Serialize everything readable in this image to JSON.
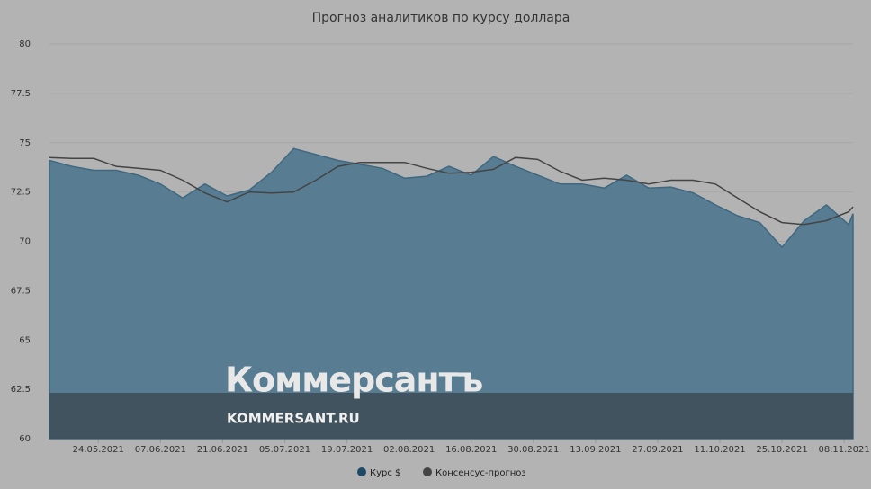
{
  "chart_data": {
    "type": "area-line",
    "title": "Прогноз аналитиков по курсу доллара",
    "x": [
      "13.05.2021",
      "18.05.2021",
      "23.05.2021",
      "28.05.2021",
      "02.06.2021",
      "07.06.2021",
      "12.06.2021",
      "17.06.2021",
      "22.06.2021",
      "27.06.2021",
      "02.07.2021",
      "07.07.2021",
      "12.07.2021",
      "17.07.2021",
      "22.07.2021",
      "27.07.2021",
      "01.08.2021",
      "06.08.2021",
      "11.08.2021",
      "16.08.2021",
      "21.08.2021",
      "26.08.2021",
      "31.08.2021",
      "05.09.2021",
      "10.09.2021",
      "15.09.2021",
      "20.09.2021",
      "25.09.2021",
      "30.09.2021",
      "05.10.2021",
      "10.10.2021",
      "15.10.2021",
      "20.10.2021",
      "25.10.2021",
      "30.10.2021",
      "04.11.2021",
      "09.11.2021",
      "10.11.2021"
    ],
    "series": [
      {
        "name": "Курс $",
        "color": "#587d92",
        "kind": "area",
        "values": [
          74.1,
          73.8,
          73.6,
          73.6,
          73.35,
          72.9,
          72.2,
          72.9,
          72.3,
          72.6,
          73.5,
          74.7,
          74.4,
          74.1,
          73.9,
          73.7,
          73.2,
          73.3,
          73.8,
          73.35,
          74.3,
          73.8,
          73.35,
          72.9,
          72.9,
          72.7,
          73.35,
          72.7,
          72.75,
          72.45,
          71.85,
          71.3,
          70.95,
          69.7,
          71.05,
          71.85,
          70.85,
          71.4
        ]
      },
      {
        "name": "Консенсус-прогноз",
        "color": "#444444",
        "kind": "line",
        "values": [
          74.25,
          74.2,
          74.2,
          73.8,
          73.7,
          73.6,
          73.1,
          72.45,
          72.0,
          72.5,
          72.45,
          72.5,
          73.1,
          73.8,
          74.0,
          74.0,
          74.0,
          73.7,
          73.45,
          73.5,
          73.65,
          74.25,
          74.15,
          73.55,
          73.1,
          73.2,
          73.1,
          72.9,
          73.1,
          73.1,
          72.9,
          72.2,
          71.5,
          70.95,
          70.85,
          71.05,
          71.5,
          71.75
        ]
      }
    ],
    "xlim": [
      "13.05.2021",
      "10.11.2021"
    ],
    "xticks": [
      "24.05.2021",
      "07.06.2021",
      "21.06.2021",
      "05.07.2021",
      "19.07.2021",
      "02.08.2021",
      "16.08.2021",
      "30.08.2021",
      "13.09.2021",
      "27.09.2021",
      "11.10.2021",
      "25.10.2021",
      "08.11.2021"
    ],
    "ylim": [
      60,
      80
    ],
    "yticks": [
      60,
      62.5,
      65,
      67.5,
      70,
      72.5,
      75,
      77.5,
      80
    ],
    "grid": true,
    "legend": "bottom"
  },
  "overlay": {
    "brand": "Коммерсантъ",
    "url": "KOMMERSANT.RU"
  }
}
